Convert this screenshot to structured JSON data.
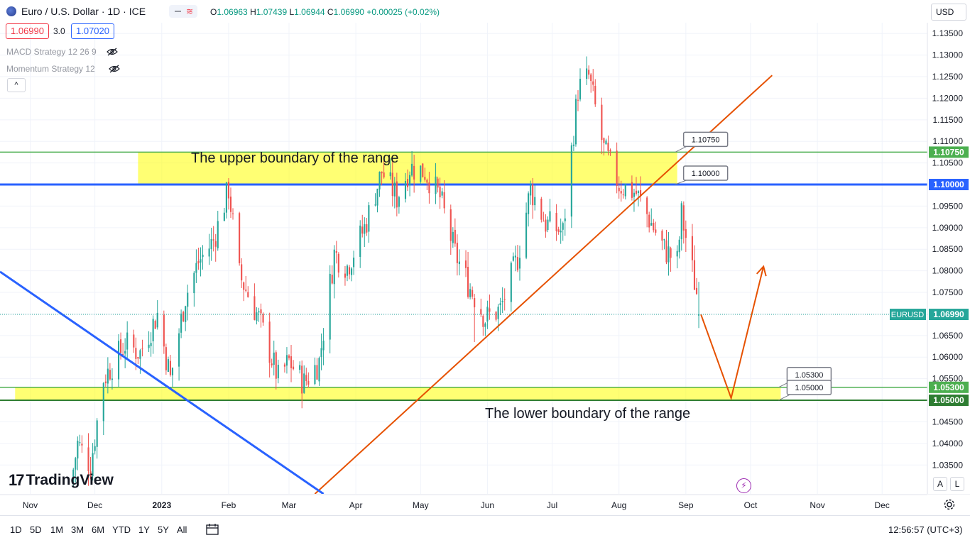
{
  "header": {
    "symbol_title": "Euro / U.S. Dollar · 1D · ICE",
    "ohlc": {
      "o_label": "O",
      "o": "1.06963",
      "h_label": "H",
      "h": "1.07439",
      "l_label": "L",
      "l": "1.06944",
      "c_label": "C",
      "c": "1.06990",
      "change": "+0.00025 (+0.02%)"
    },
    "sell_price": "1.06990",
    "spread": "3.0",
    "buy_price": "1.07020",
    "currency": "USD",
    "change_icon": "wave-icon"
  },
  "indicators": [
    {
      "name": "MACD Strategy 12 26 9",
      "icon": "eye-off-icon"
    },
    {
      "name": "Momentum Strategy 12",
      "icon": "eye-off-icon"
    }
  ],
  "collapse_label": "^",
  "annotations": {
    "upper": "The upper boundary of the range",
    "lower": "The lower boundary of the range"
  },
  "logo_text": "TradingView",
  "logo_mark": "17",
  "price_scale_buttons": [
    "A",
    "L"
  ],
  "bottom_bar": {
    "ranges": [
      "1D",
      "5D",
      "1M",
      "3M",
      "6M",
      "YTD",
      "1Y",
      "5Y",
      "All"
    ],
    "clock": "12:56:57 (UTC+3)"
  },
  "colors": {
    "up": "#26a69a",
    "down": "#ef5350",
    "zone": "#ffff00",
    "blue_level": "#2962ff",
    "green_level": "#4caf50",
    "trend_orange": "#e65100",
    "trend_blue": "#2962ff"
  },
  "chart_data": {
    "type": "candlestick",
    "symbol_label": "EURUSD",
    "last_price": 1.0699,
    "y_range": [
      1.0283,
      1.1375
    ],
    "y_ticks": [
      1.135,
      1.13,
      1.125,
      1.12,
      1.115,
      1.11,
      1.105,
      1.1,
      1.095,
      1.09,
      1.085,
      1.08,
      1.075,
      1.07,
      1.065,
      1.06,
      1.055,
      1.05,
      1.045,
      1.04,
      1.035
    ],
    "y_tick_labels": [
      "1.13500",
      "1.13000",
      "1.12500",
      "1.12000",
      "1.11500",
      "1.11000",
      "1.10500",
      "1.10000",
      "1.09500",
      "1.09000",
      "1.08500",
      "1.08000",
      "1.07500",
      "1.07000",
      "1.06500",
      "1.06000",
      "1.05500",
      "1.05000",
      "1.04500",
      "1.04000",
      "1.03500"
    ],
    "x_range": [
      "2022-10-18",
      "2023-12-22"
    ],
    "x_ticks": [
      {
        "date": "2022-11-01",
        "label": "Nov",
        "bold": false
      },
      {
        "date": "2022-12-01",
        "label": "Dec",
        "bold": false
      },
      {
        "date": "2023-01-01",
        "label": "2023",
        "bold": true
      },
      {
        "date": "2023-02-01",
        "label": "Feb",
        "bold": false
      },
      {
        "date": "2023-03-01",
        "label": "Mar",
        "bold": false
      },
      {
        "date": "2023-04-01",
        "label": "Apr",
        "bold": false
      },
      {
        "date": "2023-05-01",
        "label": "May",
        "bold": false
      },
      {
        "date": "2023-06-01",
        "label": "Jun",
        "bold": false
      },
      {
        "date": "2023-07-01",
        "label": "Jul",
        "bold": false
      },
      {
        "date": "2023-08-01",
        "label": "Aug",
        "bold": false
      },
      {
        "date": "2023-09-01",
        "label": "Sep",
        "bold": false
      },
      {
        "date": "2023-10-01",
        "label": "Oct",
        "bold": false
      },
      {
        "date": "2023-11-01",
        "label": "Nov",
        "bold": false
      },
      {
        "date": "2023-12-01",
        "label": "Dec",
        "bold": false
      }
    ],
    "close_path": [
      [
        "2022-11-20",
        1.031
      ],
      [
        "2022-11-23",
        1.04
      ],
      [
        "2022-11-29",
        1.035
      ],
      [
        "2022-12-05",
        1.055
      ],
      [
        "2022-12-15",
        1.063
      ],
      [
        "2022-12-22",
        1.061
      ],
      [
        "2022-12-30",
        1.07
      ],
      [
        "2023-01-05",
        1.055
      ],
      [
        "2023-01-12",
        1.074
      ],
      [
        "2023-01-18",
        1.082
      ],
      [
        "2023-01-25",
        1.087
      ],
      [
        "2023-02-01",
        1.099
      ],
      [
        "2023-02-06",
        1.079
      ],
      [
        "2023-02-15",
        1.069
      ],
      [
        "2023-02-24",
        1.055
      ],
      [
        "2023-03-01",
        1.059
      ],
      [
        "2023-03-08",
        1.054
      ],
      [
        "2023-03-15",
        1.059
      ],
      [
        "2023-03-22",
        1.084
      ],
      [
        "2023-03-28",
        1.081
      ],
      [
        "2023-04-05",
        1.09
      ],
      [
        "2023-04-13",
        1.103
      ],
      [
        "2023-04-20",
        1.097
      ],
      [
        "2023-04-26",
        1.104
      ],
      [
        "2023-05-03",
        1.103
      ],
      [
        "2023-05-10",
        1.097
      ],
      [
        "2023-05-17",
        1.084
      ],
      [
        "2023-05-24",
        1.076
      ],
      [
        "2023-05-31",
        1.069
      ],
      [
        "2023-06-07",
        1.071
      ],
      [
        "2023-06-15",
        1.083
      ],
      [
        "2023-06-21",
        1.099
      ],
      [
        "2023-06-28",
        1.091
      ],
      [
        "2023-07-06",
        1.089
      ],
      [
        "2023-07-13",
        1.122
      ],
      [
        "2023-07-18",
        1.125
      ],
      [
        "2023-07-25",
        1.108
      ],
      [
        "2023-08-01",
        1.1
      ],
      [
        "2023-08-09",
        1.098
      ],
      [
        "2023-08-15",
        1.092
      ],
      [
        "2023-08-22",
        1.085
      ],
      [
        "2023-08-28",
        1.082
      ],
      [
        "2023-08-30",
        1.093
      ],
      [
        "2023-09-04",
        1.08
      ],
      [
        "2023-09-08",
        1.0699
      ]
    ],
    "extremes": [
      {
        "date": "2023-07-18",
        "high": 1.1276
      },
      {
        "date": "2023-05-26",
        "low": 1.0635
      }
    ],
    "levels": [
      {
        "name": "upper-zone-top",
        "price": 1.1075,
        "label": "1.10750",
        "color": "#4caf50"
      },
      {
        "name": "resistance",
        "price": 1.1,
        "label": "1.10000",
        "color": "#2962ff"
      },
      {
        "name": "lower-zone-top",
        "price": 1.053,
        "label": "1.05300",
        "color": "#4caf50"
      },
      {
        "name": "support",
        "price": 1.05,
        "label": "1.05000",
        "color": "#2e7d32"
      }
    ],
    "zones": [
      {
        "name": "upper-range-zone",
        "from": "2022-12-21",
        "to": "2023-08-28",
        "low": 1.1,
        "high": 1.1075
      },
      {
        "name": "lower-range-zone",
        "from": "2022-10-25",
        "to": "2023-10-15",
        "low": 1.05,
        "high": 1.053
      }
    ],
    "trendlines": [
      {
        "name": "rising-trendline",
        "color": "#e65100",
        "from": [
          "2023-03-13",
          1.0283
        ],
        "to": [
          "2023-10-11",
          1.1253
        ]
      },
      {
        "name": "falling-trendline",
        "color": "#2962ff",
        "from": [
          "2022-10-18",
          1.0798
        ],
        "to": [
          "2023-03-17",
          1.0283
        ]
      }
    ],
    "projection": [
      [
        "2023-09-08",
        1.0699
      ],
      [
        "2023-09-22",
        1.0505
      ],
      [
        "2023-10-07",
        1.081
      ]
    ],
    "callouts": [
      {
        "label": "1.10750",
        "date": "2023-08-27",
        "price": 1.1075
      },
      {
        "label": "1.10000",
        "date": "2023-08-27",
        "price": 1.1
      },
      {
        "label": "1.05300",
        "date": "2023-10-14",
        "price": 1.053
      },
      {
        "label": "1.05000",
        "date": "2023-10-14",
        "price": 1.05
      }
    ]
  }
}
